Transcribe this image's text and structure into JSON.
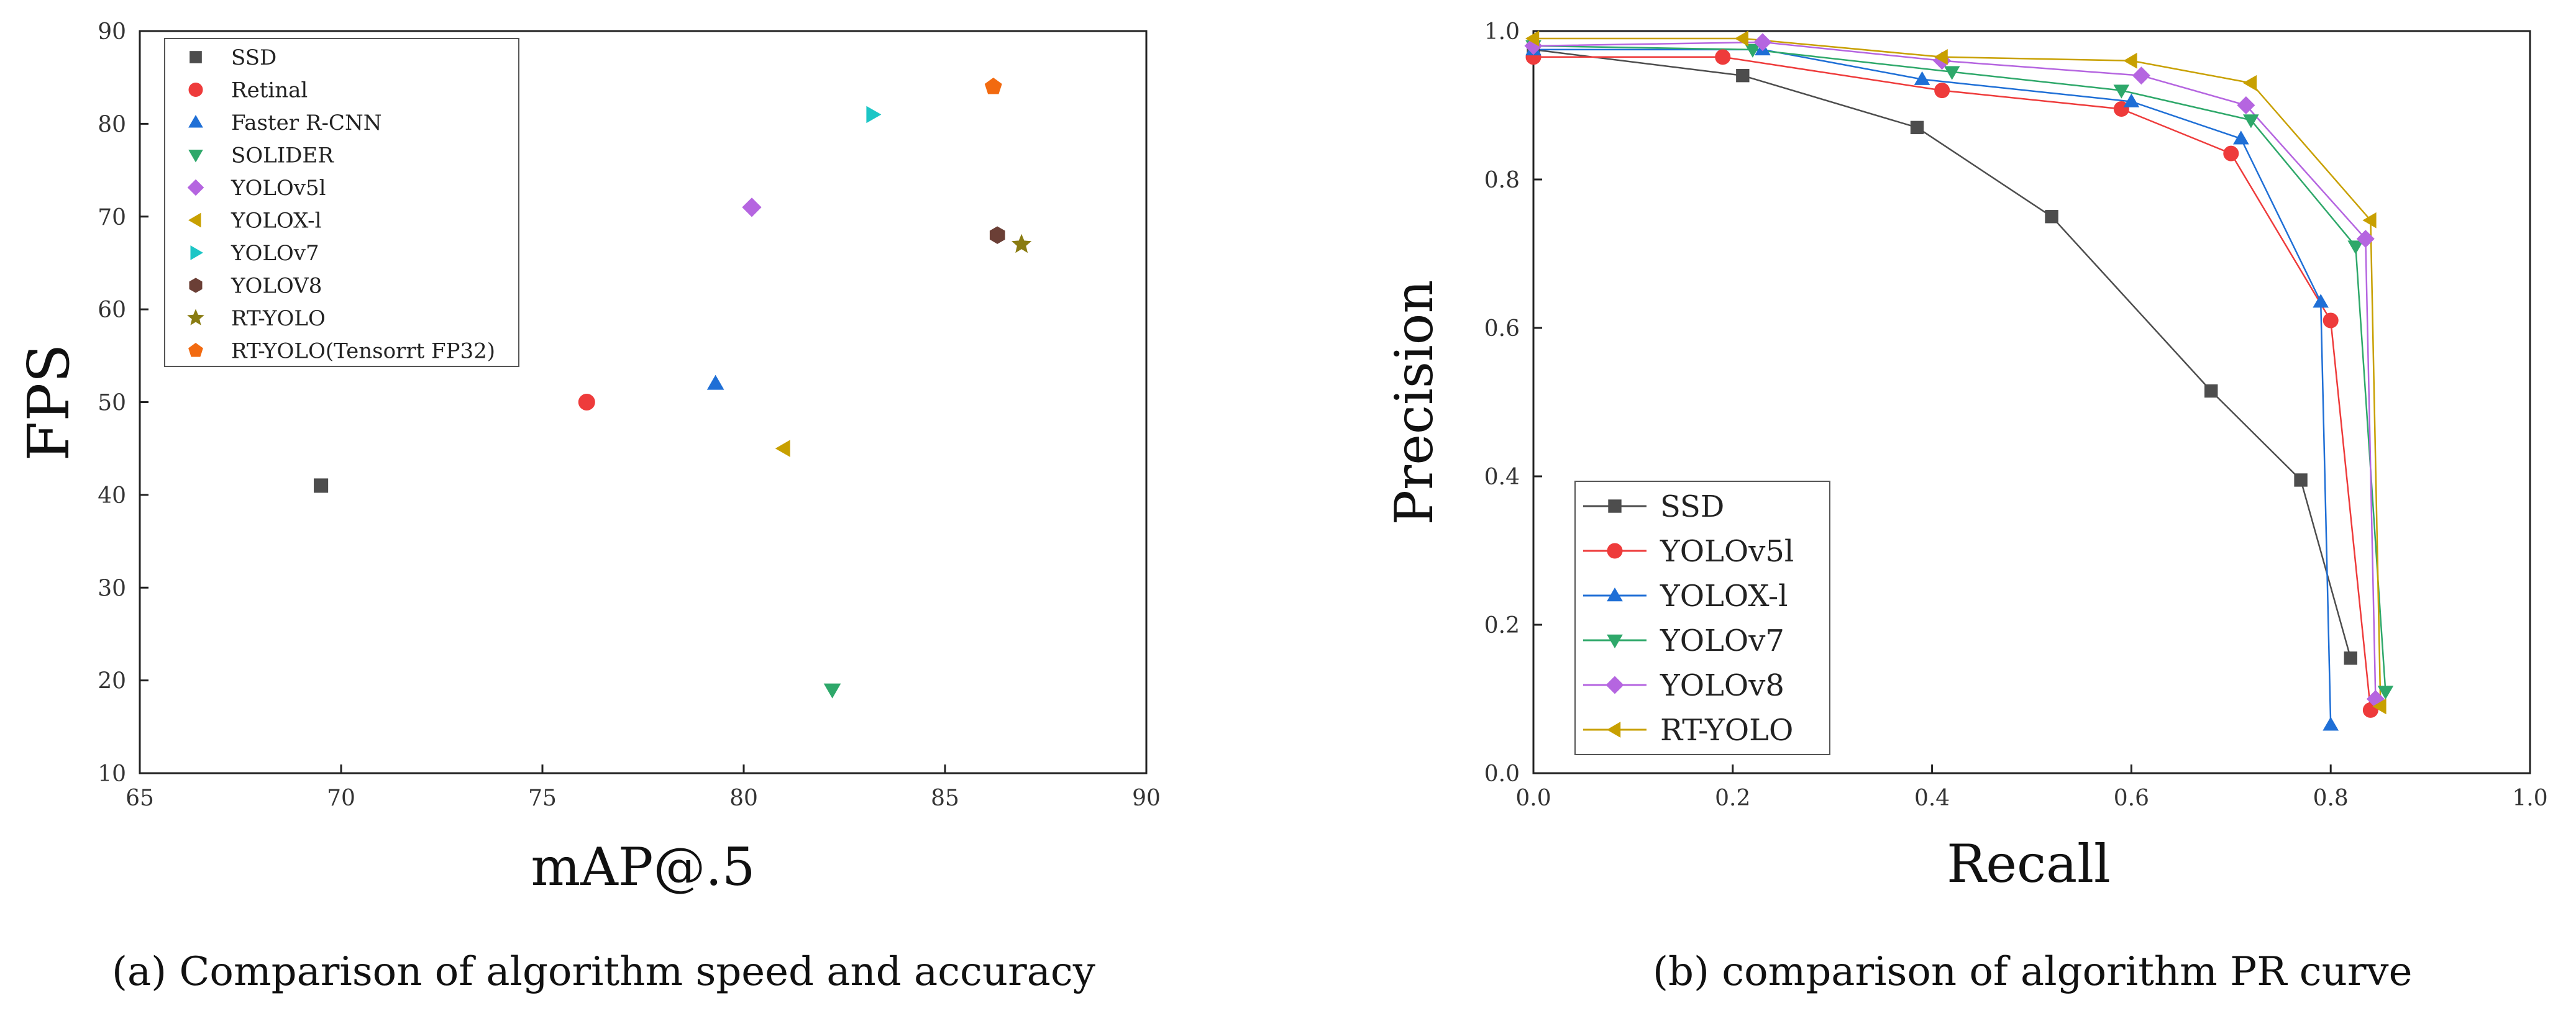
{
  "chart_data": [
    {
      "type": "scatter",
      "caption": "(a) Comparison of algorithm speed and accuracy",
      "xlabel": "mAP@.5",
      "ylabel": "FPS",
      "xlim": [
        65,
        90
      ],
      "ylim": [
        10,
        90
      ],
      "xticks": [
        65,
        70,
        75,
        80,
        85,
        90
      ],
      "yticks": [
        10,
        20,
        30,
        40,
        50,
        60,
        70,
        80,
        90
      ],
      "legend_position": "top-left",
      "series": [
        {
          "name": "SSD",
          "marker": "square",
          "color": "#4d4d4d",
          "x": [
            69.5
          ],
          "y": [
            41
          ]
        },
        {
          "name": "Retinal",
          "marker": "circle",
          "color": "#ee3b3b",
          "x": [
            76.1
          ],
          "y": [
            50
          ]
        },
        {
          "name": "Faster R-CNN",
          "marker": "triangle-up",
          "color": "#1f6fd6",
          "x": [
            79.3
          ],
          "y": [
            52
          ]
        },
        {
          "name": "SOLIDER",
          "marker": "triangle-down",
          "color": "#2ea86a",
          "x": [
            82.2
          ],
          "y": [
            19
          ]
        },
        {
          "name": "YOLOv5l",
          "marker": "diamond",
          "color": "#b565e0",
          "x": [
            80.2
          ],
          "y": [
            71
          ]
        },
        {
          "name": "YOLOX-l",
          "marker": "triangle-left",
          "color": "#c8a000",
          "x": [
            81.0
          ],
          "y": [
            45
          ]
        },
        {
          "name": "YOLOv7",
          "marker": "triangle-right",
          "color": "#1cc6c6",
          "x": [
            83.2
          ],
          "y": [
            81
          ]
        },
        {
          "name": "YOLOV8",
          "marker": "hexagon",
          "color": "#6b3f36",
          "x": [
            86.3
          ],
          "y": [
            68
          ]
        },
        {
          "name": "RT-YOLO",
          "marker": "star",
          "color": "#8a7c12",
          "x": [
            86.9
          ],
          "y": [
            67
          ]
        },
        {
          "name": "RT-YOLO(Tensorrt FP32)",
          "marker": "pentagon",
          "color": "#f26a10",
          "x": [
            86.2
          ],
          "y": [
            84
          ]
        }
      ]
    },
    {
      "type": "line",
      "caption": "(b) comparison of algorithm PR curve",
      "xlabel": "Recall",
      "ylabel": "Precision",
      "xlim": [
        0,
        1.0
      ],
      "ylim": [
        0,
        1.0
      ],
      "xticks": [
        "0.0",
        "0.2",
        "0.4",
        "0.6",
        "0.8",
        "1.0"
      ],
      "yticks": [
        "0.0",
        "0.2",
        "0.4",
        "0.6",
        "0.8",
        "1.0"
      ],
      "legend_position": "bottom-left",
      "series": [
        {
          "name": "SSD",
          "marker": "square",
          "color": "#4d4d4d",
          "x": [
            0.0,
            0.21,
            0.385,
            0.52,
            0.68,
            0.77,
            0.82
          ],
          "y": [
            0.975,
            0.94,
            0.87,
            0.75,
            0.515,
            0.395,
            0.155
          ]
        },
        {
          "name": "YOLOv5l",
          "marker": "circle",
          "color": "#ee3b3b",
          "x": [
            0.0,
            0.19,
            0.41,
            0.59,
            0.7,
            0.8,
            0.84
          ],
          "y": [
            0.965,
            0.965,
            0.92,
            0.895,
            0.835,
            0.61,
            0.085
          ]
        },
        {
          "name": "YOLOX-l",
          "marker": "triangle-up",
          "color": "#1f6fd6",
          "x": [
            0.0,
            0.23,
            0.39,
            0.6,
            0.71,
            0.79,
            0.8
          ],
          "y": [
            0.975,
            0.975,
            0.935,
            0.905,
            0.855,
            0.635,
            0.065
          ]
        },
        {
          "name": "YOLOv7",
          "marker": "triangle-down",
          "color": "#2ea86a",
          "x": [
            0.0,
            0.22,
            0.42,
            0.59,
            0.72,
            0.825,
            0.855
          ],
          "y": [
            0.98,
            0.975,
            0.945,
            0.92,
            0.88,
            0.71,
            0.11
          ]
        },
        {
          "name": "YOLOv8",
          "marker": "diamond",
          "color": "#b565e0",
          "x": [
            0.0,
            0.23,
            0.41,
            0.61,
            0.715,
            0.835,
            0.845
          ],
          "y": [
            0.98,
            0.985,
            0.96,
            0.94,
            0.9,
            0.72,
            0.1
          ]
        },
        {
          "name": "RT-YOLO",
          "marker": "triangle-left",
          "color": "#c8a000",
          "x": [
            0.0,
            0.21,
            0.41,
            0.6,
            0.72,
            0.84,
            0.85
          ],
          "y": [
            0.99,
            0.99,
            0.965,
            0.96,
            0.93,
            0.745,
            0.09
          ]
        }
      ]
    }
  ]
}
